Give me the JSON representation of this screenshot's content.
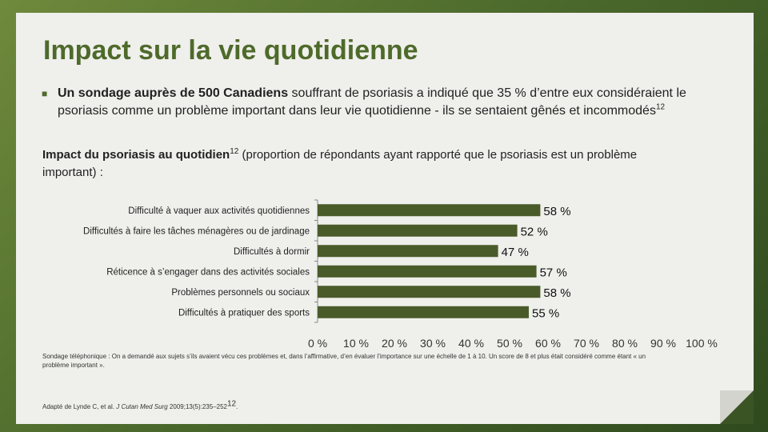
{
  "slide": {
    "title": "Impact sur la vie quotidienne",
    "bullet_bold": "Un sondage auprès de 500 Canadiens",
    "bullet_text": " souffrant de psoriasis a indiqué que 35 % d’entre eux considéraient le psoriasis comme un problème important dans leur vie quotidienne - ils se sentaient gênés et incommodés",
    "bullet_ref": "12",
    "subtitle_bold": "Impact du psoriasis au quotidien",
    "subtitle_ref": "12",
    "subtitle_text": " (proportion de répondants ayant rapporté que le psoriasis est un problème important) :",
    "footnote": "Sondage téléphonique : On a demandé aux sujets s’ils avaient vécu ces problèmes et, dans l’affirmative, d’en évaluer l’importance sur une échelle de 1 à 10. Un score de 8 et plus était considéré comme étant « un problème important ».",
    "source_prefix": "Adapté de Lynde C, et al. ",
    "source_journal": "J Cutan Med Surg",
    "source_suffix": " 2009;13(5):235–252",
    "source_ref": "12",
    "source_end": "."
  },
  "colors": {
    "bar": "#4a5b2a",
    "title": "#4e6a2a"
  },
  "chart_data": {
    "type": "bar",
    "orientation": "horizontal",
    "categories": [
      "Difficulté à vaquer aux activités quotidiennes",
      "Difficultés à faire les tâches ménagères ou de jardinage",
      "Difficultés à dormir",
      "Réticence à s’engager dans des activités sociales",
      "Problèmes personnels ou sociaux",
      "Difficultés à pratiquer des sports"
    ],
    "values": [
      58,
      52,
      47,
      57,
      58,
      55
    ],
    "value_labels": [
      "58 %",
      "52 %",
      "47 %",
      "57 %",
      "58 %",
      "55 %"
    ],
    "x_ticks": [
      0,
      10,
      20,
      30,
      40,
      50,
      60,
      70,
      80,
      90,
      100
    ],
    "x_tick_labels": [
      "0 %",
      "10 %",
      "20 %",
      "30 %",
      "40 %",
      "50 %",
      "60 %",
      "70 %",
      "80 %",
      "90 %",
      "100 %"
    ],
    "xlim": [
      0,
      100
    ],
    "grid": false
  }
}
